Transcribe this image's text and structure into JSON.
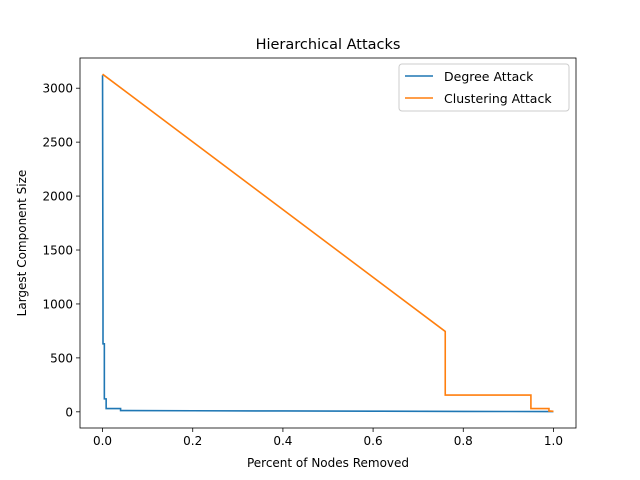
{
  "chart_data": {
    "type": "line",
    "title": "Hierarchical Attacks",
    "xlabel": "Percent of Nodes Removed",
    "ylabel": "Largest Component Size",
    "xlim": [
      -0.05,
      1.05
    ],
    "ylim": [
      -150,
      3280
    ],
    "xticks": [
      0.0,
      0.2,
      0.4,
      0.6,
      0.8,
      1.0
    ],
    "xtick_labels": [
      "0.0",
      "0.2",
      "0.4",
      "0.6",
      "0.8",
      "1.0"
    ],
    "yticks": [
      0,
      500,
      1000,
      1500,
      2000,
      2500,
      3000
    ],
    "ytick_labels": [
      "0",
      "500",
      "1000",
      "1500",
      "2000",
      "2500",
      "3000"
    ],
    "grid": false,
    "legend_position": "top-right",
    "series": [
      {
        "name": "Degree Attack",
        "color": "#1f77b4",
        "x": [
          0.0,
          0.0005,
          0.001,
          0.001,
          0.004,
          0.004,
          0.008,
          0.008,
          0.04,
          0.04,
          0.2,
          0.4,
          0.6,
          0.8,
          1.0
        ],
        "y": [
          3120,
          2000,
          1000,
          630,
          630,
          120,
          120,
          30,
          30,
          12,
          10,
          8,
          6,
          4,
          2
        ]
      },
      {
        "name": "Clustering Attack",
        "color": "#ff7f0e",
        "x": [
          0.0,
          0.76,
          0.76,
          0.95,
          0.95,
          0.99,
          0.99,
          1.0
        ],
        "y": [
          3130,
          745,
          155,
          155,
          30,
          30,
          8,
          5
        ]
      }
    ]
  }
}
